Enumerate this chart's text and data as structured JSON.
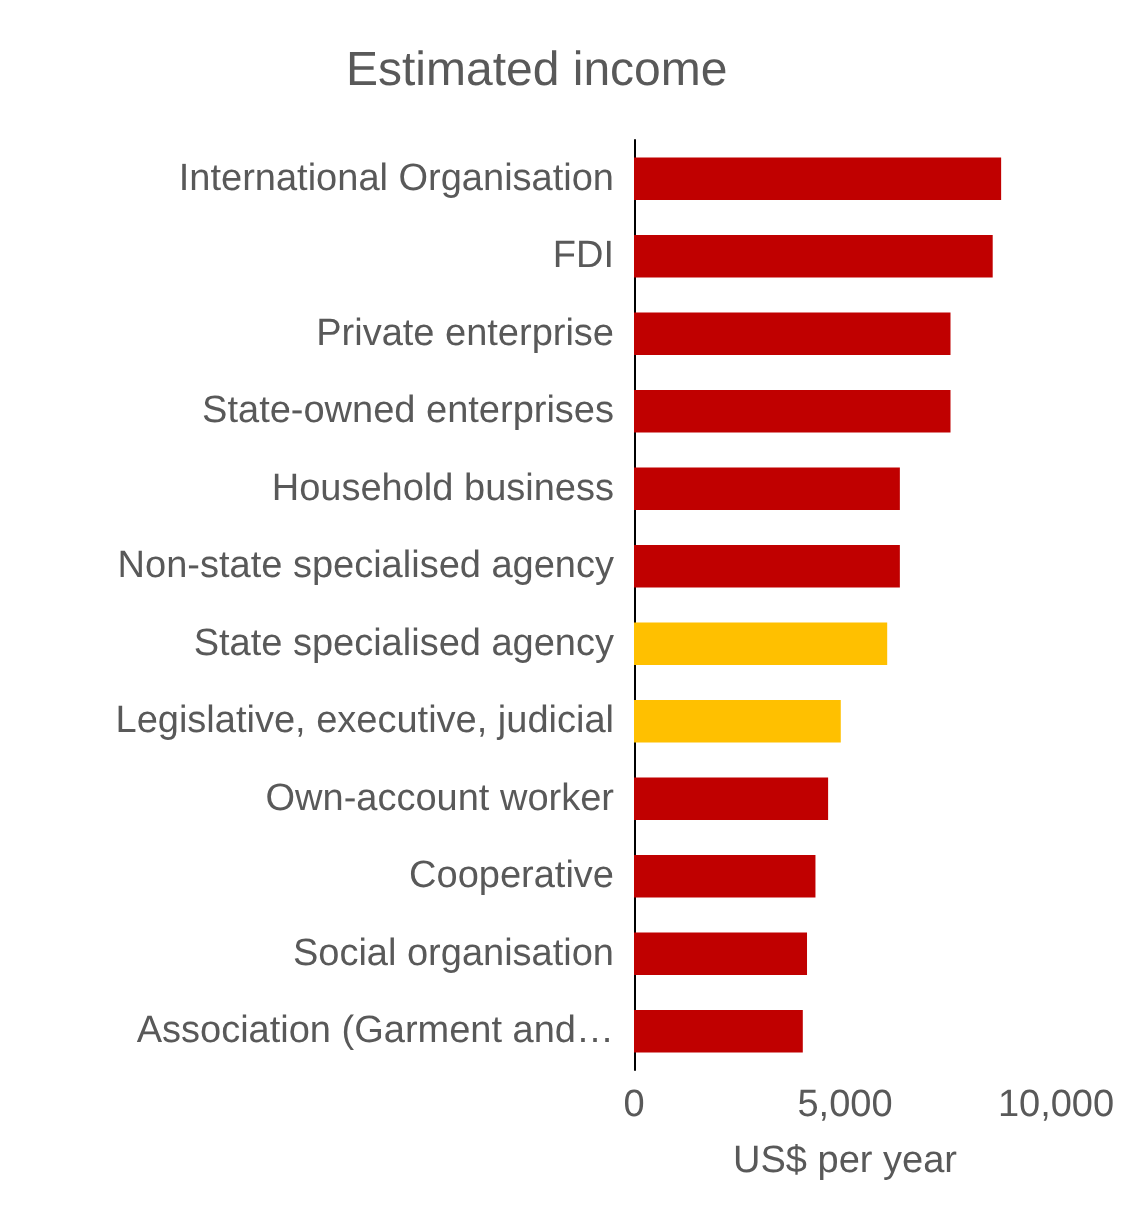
{
  "chart_data": {
    "type": "bar",
    "orientation": "horizontal",
    "title": "Estimated income",
    "xlabel": "US$ per year",
    "categories": [
      "International Organisation",
      "FDI",
      "Private enterprise",
      "State-owned enterprises",
      "Household business",
      "Non-state specialised agency",
      "State specialised agency",
      "Legislative, executive, judicial",
      "Own-account worker",
      "Cooperative",
      "Social organisation",
      "Association (Garment and…"
    ],
    "values": [
      8700,
      8500,
      7500,
      7500,
      6300,
      6300,
      6000,
      4900,
      4600,
      4300,
      4100,
      4000
    ],
    "colors": [
      "#c00000",
      "#c00000",
      "#c00000",
      "#c00000",
      "#c00000",
      "#c00000",
      "#ffc000",
      "#ffc000",
      "#c00000",
      "#c00000",
      "#c00000",
      "#c00000"
    ],
    "xlim": [
      0,
      10000
    ],
    "xticks": [
      0,
      {
        "value": 5000,
        "label": "5,000"
      },
      {
        "value": 10000,
        "label": "10,000"
      }
    ],
    "grid": false
  }
}
